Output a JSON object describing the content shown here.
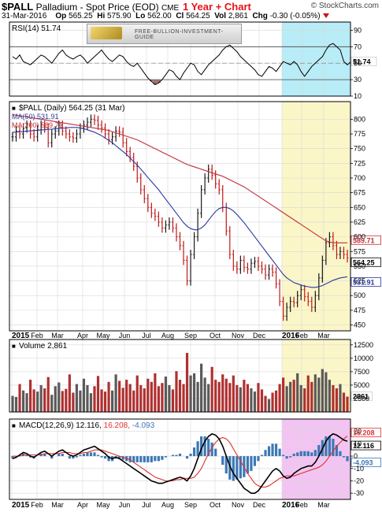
{
  "header": {
    "symbol": "$PALL",
    "name": "Palladium - Spot Price (EOD)",
    "exchange": "CME",
    "chart_label": "1 Year + Chart",
    "watermark": "© StockCharts.com",
    "date": "31-Mar-2016",
    "op_label": "Op",
    "op": "565.25",
    "hi_label": "Hi",
    "hi": "575.90",
    "lo_label": "Lo",
    "lo": "562.00",
    "cl_label": "Cl",
    "cl": "564.25",
    "vol_label": "Vol",
    "vol": "2,861",
    "chg_label": "Chg",
    "chg": "-0.30 (-0.05%)",
    "down_color": "#d01010"
  },
  "banner": {
    "text": "FREE-BULLION-INVESTMENT-GUIDE"
  },
  "chart_data": [
    {
      "type": "line",
      "panel": "rsi",
      "title": "RSI(14) 51.74",
      "ylim": [
        10,
        100
      ],
      "yticks": [
        "90",
        "70",
        "50",
        "30",
        "10"
      ],
      "ytick_values": [
        90,
        70,
        50,
        30,
        10
      ],
      "last_label": "51.74",
      "levels": [
        70,
        30
      ],
      "highlight_color": "#b8ecf6",
      "values": [
        58,
        55,
        60,
        52,
        50,
        48,
        52,
        56,
        60,
        58,
        54,
        50,
        56,
        62,
        66,
        60,
        57,
        55,
        58,
        60,
        56,
        50,
        54,
        58,
        62,
        66,
        60,
        55,
        52,
        56,
        60,
        58,
        52,
        48,
        46,
        50,
        44,
        38,
        32,
        28,
        24,
        26,
        30,
        36,
        42,
        40,
        34,
        30,
        38,
        44,
        50,
        48,
        40,
        36,
        42,
        48,
        52,
        56,
        60,
        66,
        70,
        72,
        68,
        64,
        58,
        54,
        50,
        46,
        42,
        36,
        34,
        40,
        46,
        44,
        40,
        46,
        52,
        50,
        48,
        52,
        48,
        40,
        34,
        40,
        46,
        50,
        54,
        58,
        66,
        72,
        74,
        70,
        66,
        52,
        48,
        51.74
      ]
    },
    {
      "type": "line",
      "panel": "price",
      "title": "$PALL (Daily) 564.25 (31 Mar)",
      "legend": [
        {
          "name": "MA(50) 531.91",
          "color": "#2a3a9e"
        },
        {
          "name": "MA(200) 589.71",
          "color": "#c0303a"
        }
      ],
      "x_labels": [
        "2015",
        "Feb",
        "Mar",
        "Apr",
        "May",
        "Jun",
        "Jul",
        "Aug",
        "Sep",
        "Oct",
        "Nov",
        "Dec",
        "2016",
        "Feb",
        "Mar"
      ],
      "x_label_bold": [
        true,
        false,
        false,
        false,
        false,
        false,
        false,
        false,
        false,
        false,
        false,
        false,
        true,
        false,
        false
      ],
      "ylim": [
        440,
        830
      ],
      "yticks": [
        "800",
        "775",
        "750",
        "725",
        "700",
        "675",
        "650",
        "625",
        "600",
        "575",
        "550",
        "525",
        "500",
        "475",
        "450"
      ],
      "ytick_values": [
        800,
        775,
        750,
        725,
        700,
        675,
        650,
        625,
        600,
        575,
        550,
        525,
        500,
        475,
        450
      ],
      "last_labels": [
        "589.71",
        "564.25",
        "531.91"
      ],
      "highlight_color": "#fbf6c8",
      "close": [
        770,
        780,
        775,
        785,
        790,
        775,
        770,
        782,
        790,
        785,
        760,
        775,
        780,
        790,
        780,
        775,
        770,
        768,
        775,
        785,
        790,
        795,
        800,
        798,
        790,
        785,
        775,
        765,
        770,
        780,
        778,
        760,
        745,
        735,
        720,
        700,
        680,
        665,
        650,
        640,
        635,
        625,
        615,
        620,
        625,
        615,
        600,
        585,
        560,
        525,
        570,
        600,
        640,
        680,
        700,
        715,
        705,
        690,
        680,
        650,
        610,
        570,
        550,
        545,
        560,
        548,
        545,
        555,
        558,
        550,
        545,
        535,
        545,
        540,
        520,
        490,
        465,
        480,
        490,
        488,
        500,
        510,
        498,
        490,
        480,
        500,
        530,
        560,
        590,
        600,
        585,
        570,
        575,
        570,
        564.25
      ],
      "ma200": [
        808,
        807,
        806,
        805,
        804,
        803,
        802,
        801,
        800,
        799,
        798,
        797,
        796,
        795,
        794,
        793,
        792,
        791,
        790,
        789,
        788,
        787,
        786,
        785,
        784,
        783,
        782,
        781,
        779,
        777,
        775,
        773,
        771,
        769,
        767,
        765,
        762,
        759,
        756,
        753,
        750,
        747,
        744,
        741,
        738,
        735,
        732,
        729,
        726,
        723,
        721,
        719,
        717,
        715,
        713,
        711,
        709,
        707,
        705,
        703,
        700,
        697,
        694,
        691,
        688,
        685,
        681,
        677,
        673,
        669,
        665,
        661,
        657,
        653,
        649,
        645,
        641,
        637,
        633,
        629,
        625,
        621,
        617,
        613,
        609,
        605,
        601,
        597,
        593,
        591,
        590,
        589.71,
        589.71,
        589.71,
        589.71
      ],
      "ma50": [
        778,
        778,
        779,
        779,
        780,
        780,
        781,
        781,
        782,
        782,
        783,
        783,
        784,
        784,
        785,
        785,
        786,
        786,
        786,
        785,
        784,
        782,
        780,
        778,
        775,
        772,
        768,
        764,
        760,
        755,
        750,
        745,
        740,
        734,
        728,
        722,
        715,
        708,
        701,
        694,
        687,
        680,
        672,
        664,
        656,
        648,
        640,
        632,
        624,
        618,
        614,
        612,
        612,
        615,
        620,
        628,
        636,
        643,
        648,
        650,
        650,
        648,
        644,
        638,
        631,
        624,
        616,
        608,
        600,
        592,
        584,
        576,
        568,
        560,
        552,
        544,
        536,
        530,
        526,
        522,
        520,
        518,
        516,
        515,
        514,
        514,
        515,
        517,
        520,
        523,
        526,
        528,
        530,
        531,
        531.91
      ]
    },
    {
      "type": "bar",
      "panel": "volume",
      "title": "Volume 2,861",
      "ylim": [
        0,
        13500
      ],
      "yticks": [
        "12500",
        "10000",
        "7500",
        "5000",
        "2500"
      ],
      "ytick_values": [
        12500,
        10000,
        7500,
        5000,
        2500
      ],
      "last_label": "2861",
      "highlight_color": "#fbf6c8",
      "values": [
        3000,
        2800,
        5200,
        4000,
        3500,
        6000,
        4200,
        3800,
        5000,
        4400,
        6500,
        3200,
        4800,
        5500,
        3900,
        4300,
        7000,
        3600,
        5200,
        4000,
        6200,
        5000,
        3500,
        4800,
        6700,
        4200,
        3800,
        5600,
        4000,
        7000,
        5800,
        4500,
        6000,
        5200,
        4000,
        6800,
        5000,
        4400,
        6200,
        5600,
        7200,
        4800,
        5400,
        6600,
        5000,
        4200,
        7600,
        6000,
        5200,
        11000,
        6800,
        7200,
        5600,
        9000,
        6400,
        5200,
        8400,
        6000,
        5600,
        7000,
        6200,
        5400,
        6800,
        5000,
        4600,
        6000,
        5200,
        4400,
        3800,
        5400,
        4200,
        3000,
        2400,
        3600,
        4000,
        5200,
        6400,
        4800,
        5600,
        6000,
        7200,
        5000,
        4400,
        6800,
        5600,
        7000,
        6400,
        8000,
        7400,
        6000,
        5000,
        4400,
        5200,
        3600,
        2861
      ]
    },
    {
      "type": "line",
      "panel": "macd",
      "title": "MACD(12,26,9) 12.116, 16.208, -4.093",
      "title_parts": [
        "MACD(12,26,9)",
        "12.116,",
        "16.208,",
        "-4.093"
      ],
      "ylim": [
        -35,
        30
      ],
      "yticks": [
        "20",
        "10",
        "0",
        "-10",
        "-20",
        "-30"
      ],
      "ytick_values": [
        20,
        10,
        0,
        -10,
        -20,
        -30
      ],
      "last_labels": [
        "16.208",
        "12.116",
        "-4.093"
      ],
      "highlight_color": "#f2c4f2",
      "series": [
        {
          "name": "MACD",
          "color": "#000000",
          "values": [
            -2,
            -1,
            1,
            3,
            2,
            0,
            -1,
            1,
            3,
            4,
            2,
            0,
            2,
            4,
            5,
            3,
            1,
            0,
            1,
            3,
            5,
            6,
            7,
            8,
            6,
            4,
            2,
            -1,
            -2,
            -1,
            -2,
            -4,
            -6,
            -8,
            -10,
            -12,
            -14,
            -16,
            -18,
            -20,
            -21,
            -22,
            -22,
            -21,
            -20,
            -19,
            -18,
            -17,
            -18,
            -20,
            -16,
            -10,
            -2,
            6,
            12,
            16,
            18,
            17,
            14,
            8,
            0,
            -8,
            -14,
            -18,
            -22,
            -26,
            -28,
            -30,
            -30,
            -28,
            -24,
            -20,
            -16,
            -12,
            -10,
            -12,
            -16,
            -18,
            -17,
            -14,
            -12,
            -10,
            -9,
            -8,
            -8,
            -5,
            0,
            6,
            12,
            16,
            18,
            17,
            15,
            13,
            12.116
          ]
        },
        {
          "name": "Signal",
          "color": "#e03030",
          "values": [
            0,
            0,
            0,
            1,
            1,
            1,
            1,
            1,
            1,
            2,
            2,
            2,
            2,
            2,
            3,
            3,
            3,
            2,
            2,
            2,
            3,
            3,
            4,
            5,
            5,
            5,
            4,
            3,
            2,
            1,
            0,
            -1,
            -2,
            -3,
            -5,
            -7,
            -9,
            -11,
            -13,
            -15,
            -17,
            -18,
            -19,
            -20,
            -20,
            -20,
            -19,
            -19,
            -18,
            -18,
            -18,
            -17,
            -14,
            -10,
            -4,
            2,
            7,
            11,
            14,
            15,
            14,
            11,
            6,
            1,
            -4,
            -9,
            -14,
            -18,
            -22,
            -24,
            -25,
            -25,
            -24,
            -22,
            -20,
            -18,
            -17,
            -16,
            -16,
            -16,
            -15,
            -14,
            -13,
            -12,
            -11,
            -10,
            -9,
            -7,
            -4,
            0,
            4,
            8,
            11,
            14,
            16.208
          ]
        }
      ],
      "histogram_color": "#3c78b4",
      "histogram": [
        -2,
        -1,
        1,
        2,
        1,
        -1,
        -2,
        0,
        2,
        2,
        0,
        -2,
        0,
        2,
        2,
        0,
        -2,
        -2,
        -1,
        1,
        2,
        3,
        3,
        3,
        1,
        -1,
        -2,
        -4,
        -4,
        -2,
        -2,
        -3,
        -4,
        -5,
        -5,
        -5,
        -5,
        -5,
        -5,
        -5,
        -4,
        -4,
        -3,
        -1,
        0,
        1,
        1,
        2,
        0,
        -2,
        2,
        7,
        12,
        16,
        16,
        14,
        11,
        6,
        0,
        -7,
        -14,
        -19,
        -20,
        -19,
        -18,
        -17,
        -14,
        -12,
        -8,
        -4,
        1,
        5,
        8,
        10,
        10,
        6,
        1,
        -2,
        -1,
        2,
        3,
        4,
        4,
        4,
        3,
        5,
        9,
        13,
        16,
        16,
        14,
        9,
        4,
        -1,
        -4.093
      ]
    }
  ]
}
